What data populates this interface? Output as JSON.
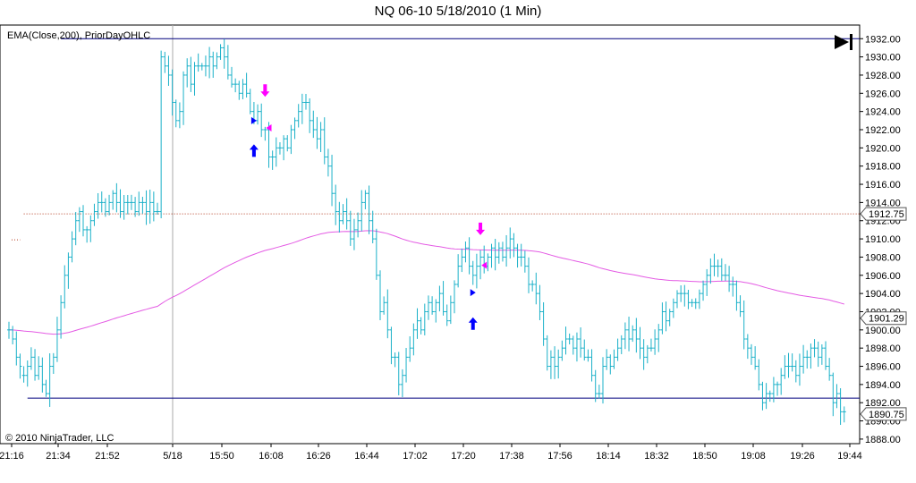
{
  "title": "NQ 06-10  5/18/2010 (1 Min)",
  "indicator_label": "EMA(Close,200), PriorDayOHLC",
  "copyright": "© 2010 NinjaTrader, LLC",
  "colors": {
    "bars": "#1ab0c8",
    "ema": "#e45be4",
    "level_line": "#00007f",
    "prior_close": "#b23a1e",
    "buy_arrow": "#0000ff",
    "sell_arrow": "#ff00ff",
    "axis": "#000000"
  },
  "chart_data": {
    "type": "ohlc-bar",
    "instrument": "NQ 06-10",
    "interval": "1 Min",
    "ylim": [
      1887.5,
      1933.5
    ],
    "y_ticks": [
      1888,
      1890,
      1892,
      1894,
      1896,
      1898,
      1900,
      1902,
      1904,
      1906,
      1908,
      1910,
      1912,
      1914,
      1916,
      1918,
      1920,
      1922,
      1924,
      1926,
      1928,
      1930,
      1932
    ],
    "y_tick_labels": [
      "1888.00",
      "1890.00",
      "1892.00",
      "1894.00",
      "1896.00",
      "1898.00",
      "1900.00",
      "1902.00",
      "1904.00",
      "1906.00",
      "1908.00",
      "1910.00",
      "1912.00",
      "1914.00",
      "1916.00",
      "1918.00",
      "1920.00",
      "1922.00",
      "1924.00",
      "1926.00",
      "1928.00",
      "1930.00",
      "1932.00"
    ],
    "x_tick_labels": [
      "21:16",
      "21:34",
      "21:52",
      "5/18",
      "15:50",
      "16:08",
      "16:26",
      "16:44",
      "17:02",
      "17:20",
      "17:38",
      "17:56",
      "18:14",
      "18:32",
      "18:50",
      "19:08",
      "19:26",
      "19:44"
    ],
    "session_break_index": 3,
    "price_flags": [
      {
        "label": "1912.75",
        "value": 1912.75
      },
      {
        "label": "1901.29",
        "value": 1901.29
      },
      {
        "label": "1890.75",
        "value": 1890.75
      }
    ],
    "levels": {
      "high": 1932.0,
      "low": 1892.5,
      "close": 1912.75,
      "prior_session_close": 1909.9
    },
    "closes": [
      1900,
      1899,
      1897,
      1896,
      1895,
      1896,
      1897,
      1895,
      1896,
      1894,
      1893,
      1896,
      1897,
      1900,
      1903,
      1906,
      1908,
      1910,
      1912,
      1913,
      1911,
      1911,
      1912,
      1913,
      1914,
      1914,
      1913,
      1914,
      1915,
      1914,
      1913,
      1914,
      1914,
      1914,
      1913,
      1914,
      1914,
      1913,
      1914,
      1913,
      1913,
      1930,
      1929,
      1928,
      1925,
      1923,
      1924,
      1928,
      1929,
      1927,
      1929,
      1929,
      1929,
      1929,
      1930,
      1929,
      1930,
      1931,
      1930,
      1928,
      1927,
      1927,
      1926,
      1927,
      1926,
      1924,
      1923,
      1924,
      1922,
      1922,
      1919,
      1919,
      1920,
      1920,
      1921,
      1920,
      1922,
      1923,
      1924,
      1925,
      1925,
      1923,
      1922,
      1921,
      1922,
      1919,
      1918,
      1915,
      1913,
      1912,
      1913,
      1912,
      1910,
      1911,
      1912,
      1914,
      1915,
      1912,
      1910,
      1906,
      1902,
      1903,
      1900,
      1897,
      1897,
      1894,
      1895,
      1897,
      1898,
      1900,
      1901,
      1900,
      1902,
      1903,
      1902,
      1903,
      1904,
      1902,
      1901,
      1903,
      1905,
      1907,
      1908,
      1909,
      1907,
      1906,
      1907,
      1908,
      1907,
      1908,
      1909,
      1908,
      1909,
      1908,
      1909,
      1910,
      1909,
      1908,
      1908,
      1907,
      1905,
      1905,
      1904,
      1902,
      1899,
      1896,
      1897,
      1896,
      1897,
      1898,
      1899,
      1899,
      1898,
      1899,
      1898,
      1897,
      1897,
      1895,
      1893,
      1893,
      1896,
      1897,
      1896,
      1897,
      1898,
      1899,
      1900,
      1899,
      1900,
      1899,
      1898,
      1897,
      1898,
      1898,
      1899,
      1900,
      1902,
      1901,
      1902,
      1903,
      1904,
      1904,
      1904,
      1903,
      1903,
      1903,
      1904,
      1905,
      1906,
      1907,
      1907,
      1907,
      1906,
      1906,
      1905,
      1905,
      1903,
      1902,
      1899,
      1898,
      1897,
      1896,
      1894,
      1892,
      1893,
      1893,
      1894,
      1894,
      1895,
      1896,
      1896,
      1896,
      1895,
      1896,
      1897,
      1897,
      1898,
      1898,
      1897,
      1898,
      1896,
      1895,
      1892,
      1893,
      1891,
      1891
    ],
    "annotations": [
      {
        "kind": "buy-arrow",
        "index": 66,
        "value": 1919.6
      },
      {
        "kind": "entry-marker-buy",
        "index": 66,
        "value": 1923.0
      },
      {
        "kind": "sell-arrow",
        "index": 69,
        "value": 1926.4
      },
      {
        "kind": "exit-marker-sell",
        "index": 70,
        "value": 1922.2
      },
      {
        "kind": "buy-arrow",
        "index": 125,
        "value": 1900.6
      },
      {
        "kind": "entry-marker-buy",
        "index": 125,
        "value": 1904.1
      },
      {
        "kind": "sell-arrow",
        "index": 127,
        "value": 1911.2
      },
      {
        "kind": "exit-marker-sell",
        "index": 128,
        "value": 1907.1
      }
    ]
  }
}
